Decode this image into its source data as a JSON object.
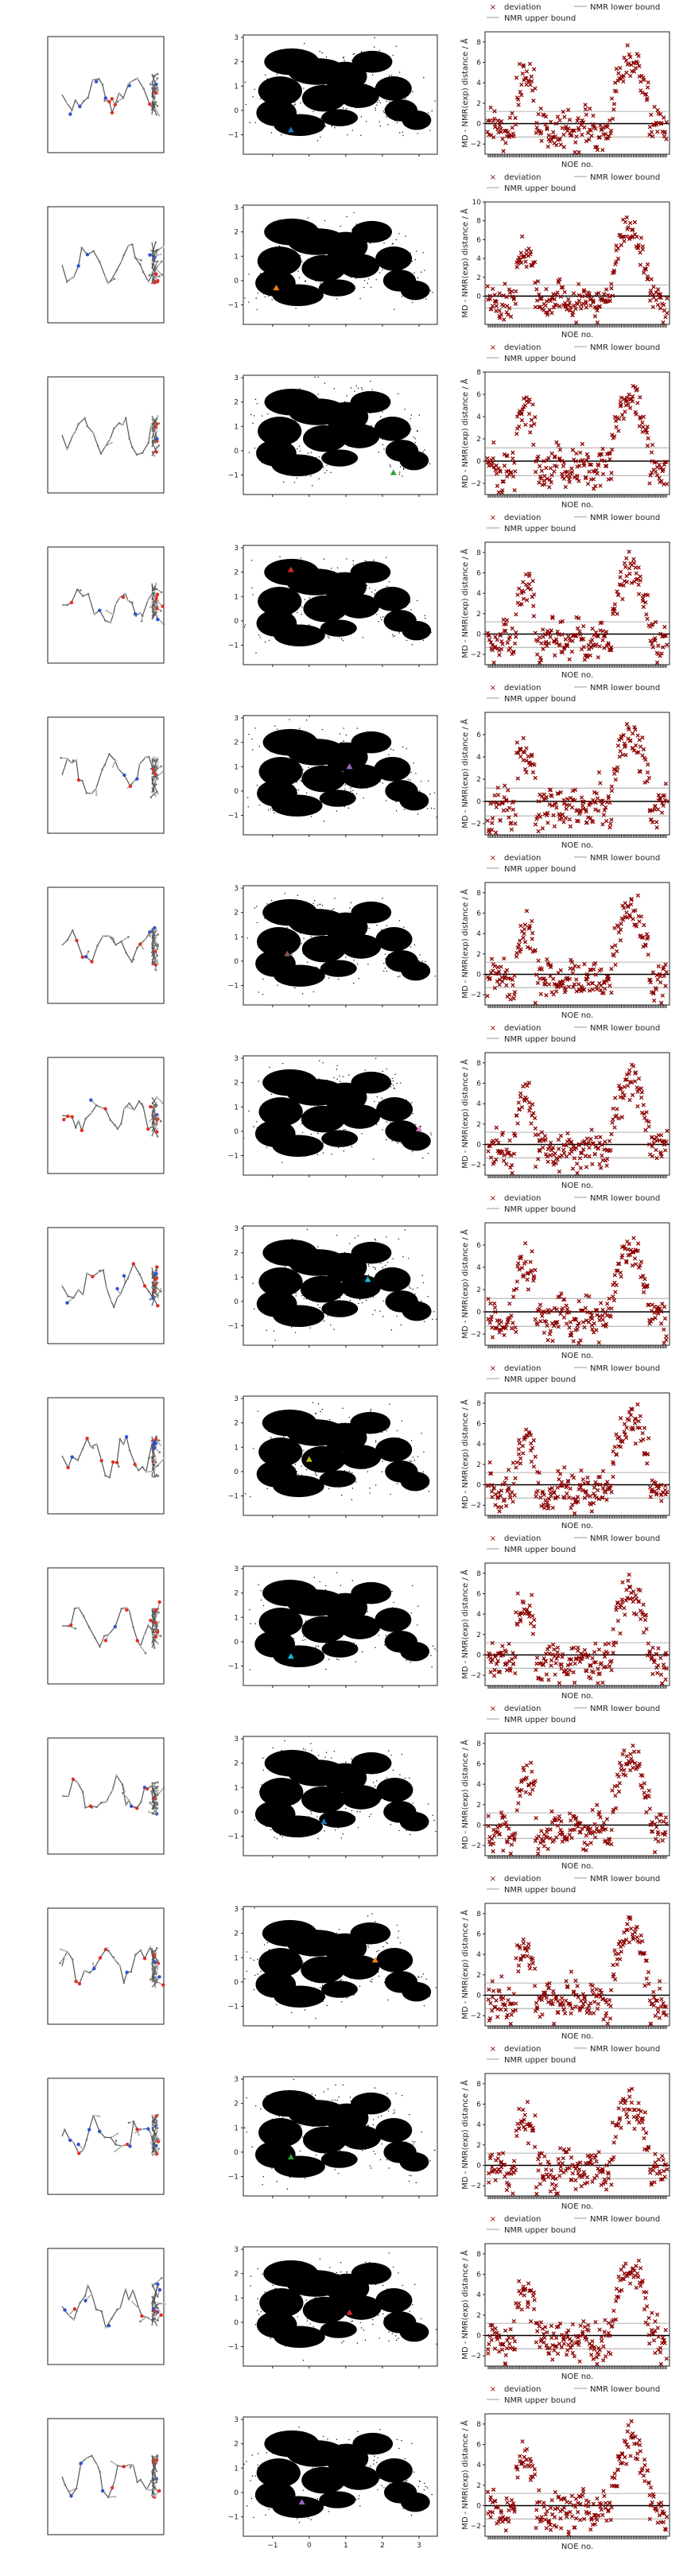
{
  "figure": {
    "rows": 15,
    "columns": [
      "structure-snapshot",
      "projection-scatter",
      "noe-deviation"
    ]
  },
  "projection_axes": {
    "x_ticks": [
      "−1",
      "0",
      "1",
      "2",
      "3"
    ],
    "y_ticks": [
      "−1",
      "0",
      "1",
      "2",
      "3"
    ],
    "xlim": [
      -1.8,
      3.5
    ],
    "ylim": [
      -1.8,
      3.1
    ]
  },
  "noe_axes": {
    "xlabel": "NOE no.",
    "ylabel": "MD - NMR(exp) distance / Å",
    "legend": {
      "deviation": "deviation",
      "upper": "NMR upper bound",
      "lower": "NMR lower bound"
    },
    "n_noe": 120
  },
  "colors": {
    "deviation": "#8b0000",
    "upper": "#9a9a9a",
    "lower": "#9a9a9a",
    "density": "#000000",
    "marker_palette": [
      "#1f77b4",
      "#ff7f0e",
      "#2ca02c",
      "#d62728",
      "#9467bd",
      "#8c564b",
      "#e377c2",
      "#17becf",
      "#bcbd22"
    ]
  },
  "chart_data": [
    {
      "type": "scatter",
      "row": 1,
      "marker": {
        "x": -0.5,
        "y": -0.8,
        "color": "#1f77b4"
      },
      "noe_ylim": [
        -3,
        9
      ],
      "noe_yticks": [
        "−2",
        "0",
        "2",
        "4",
        "6",
        "8"
      ]
    },
    {
      "type": "scatter",
      "row": 2,
      "marker": {
        "x": -0.9,
        "y": -0.3,
        "color": "#ff7f0e"
      },
      "noe_ylim": [
        -3,
        10
      ],
      "noe_yticks": [
        "0",
        "2",
        "4",
        "6",
        "8",
        "10"
      ]
    },
    {
      "type": "scatter",
      "row": 3,
      "marker": {
        "x": 2.3,
        "y": -0.9,
        "color": "#2ca02c"
      },
      "noe_ylim": [
        -3,
        8
      ],
      "noe_yticks": [
        "−2",
        "0",
        "2",
        "4",
        "6",
        "8"
      ]
    },
    {
      "type": "scatter",
      "row": 4,
      "marker": {
        "x": -0.5,
        "y": 2.1,
        "color": "#d62728"
      },
      "noe_ylim": [
        -3,
        9
      ],
      "noe_yticks": [
        "−2",
        "0",
        "2",
        "4",
        "6",
        "8"
      ]
    },
    {
      "type": "scatter",
      "row": 5,
      "marker": {
        "x": 1.1,
        "y": 1.0,
        "color": "#9467bd"
      },
      "noe_ylim": [
        -3,
        8
      ],
      "noe_yticks": [
        "−2",
        "0",
        "2",
        "4",
        "6"
      ]
    },
    {
      "type": "scatter",
      "row": 6,
      "marker": {
        "x": -0.6,
        "y": 0.3,
        "color": "#8c564b"
      },
      "noe_ylim": [
        -3,
        9
      ],
      "noe_yticks": [
        "−2",
        "0",
        "2",
        "4",
        "6",
        "8"
      ]
    },
    {
      "type": "scatter",
      "row": 7,
      "marker": {
        "x": 3.0,
        "y": 0.1,
        "color": "#e377c2"
      },
      "noe_ylim": [
        -3,
        9
      ],
      "noe_yticks": [
        "−2",
        "0",
        "2",
        "4",
        "6",
        "8"
      ]
    },
    {
      "type": "scatter",
      "row": 8,
      "marker": {
        "x": 1.6,
        "y": 0.9,
        "color": "#17becf"
      },
      "noe_ylim": [
        -3,
        8
      ],
      "noe_yticks": [
        "−2",
        "0",
        "2",
        "4",
        "6"
      ]
    },
    {
      "type": "scatter",
      "row": 9,
      "marker": {
        "x": 0.0,
        "y": 0.5,
        "color": "#bcbd22"
      },
      "noe_ylim": [
        -3,
        9
      ],
      "noe_yticks": [
        "−2",
        "0",
        "2",
        "4",
        "6",
        "8"
      ]
    },
    {
      "type": "scatter",
      "row": 10,
      "marker": {
        "x": -0.5,
        "y": -0.6,
        "color": "#17becf"
      },
      "noe_ylim": [
        -3,
        9
      ],
      "noe_yticks": [
        "−2",
        "0",
        "2",
        "4",
        "6",
        "8"
      ]
    },
    {
      "type": "scatter",
      "row": 11,
      "marker": {
        "x": 0.4,
        "y": -0.4,
        "color": "#1f77b4"
      },
      "noe_ylim": [
        -3,
        9
      ],
      "noe_yticks": [
        "−2",
        "0",
        "2",
        "4",
        "6",
        "8"
      ]
    },
    {
      "type": "scatter",
      "row": 12,
      "marker": {
        "x": 1.8,
        "y": 0.9,
        "color": "#ff7f0e"
      },
      "noe_ylim": [
        -3,
        9
      ],
      "noe_yticks": [
        "−2",
        "0",
        "2",
        "4",
        "6",
        "8"
      ]
    },
    {
      "type": "scatter",
      "row": 13,
      "marker": {
        "x": -0.5,
        "y": -0.2,
        "color": "#2ca02c"
      },
      "noe_ylim": [
        -3,
        9
      ],
      "noe_yticks": [
        "−2",
        "0",
        "2",
        "4",
        "6",
        "8"
      ]
    },
    {
      "type": "scatter",
      "row": 14,
      "marker": {
        "x": 1.1,
        "y": 0.4,
        "color": "#d62728"
      },
      "noe_ylim": [
        -3,
        9
      ],
      "noe_yticks": [
        "−2",
        "0",
        "2",
        "4",
        "6",
        "8"
      ]
    },
    {
      "type": "scatter",
      "row": 15,
      "marker": {
        "x": -0.2,
        "y": -0.4,
        "color": "#9467bd"
      },
      "noe_ylim": [
        -3,
        9
      ],
      "noe_yticks": [
        "−2",
        "0",
        "2",
        "4",
        "6",
        "8"
      ]
    }
  ]
}
